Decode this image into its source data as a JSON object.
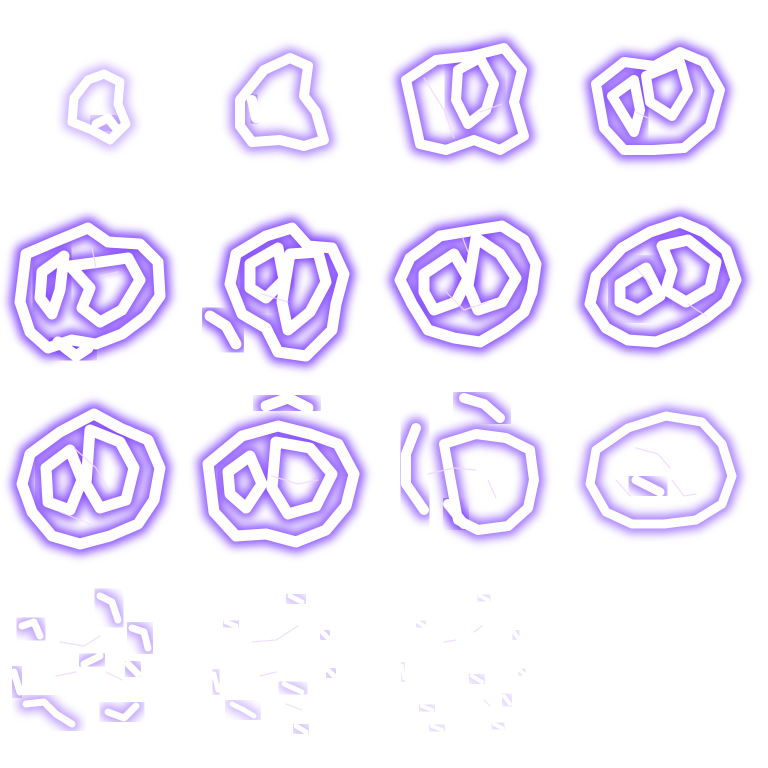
{
  "spritesheet": {
    "columns": 4,
    "rows": 4,
    "frame_count": 15,
    "effect": "electric-burst-animation",
    "colors": {
      "background": "#ffffff",
      "glow": "#7a3cff",
      "glow_soft": "#b28cff",
      "core": "#ffffff",
      "crack": "#f2d8ff"
    },
    "frames": [
      {
        "index": 1,
        "intensity": 0.35
      },
      {
        "index": 2,
        "intensity": 0.6
      },
      {
        "index": 3,
        "intensity": 0.85
      },
      {
        "index": 4,
        "intensity": 0.9
      },
      {
        "index": 5,
        "intensity": 1.0
      },
      {
        "index": 6,
        "intensity": 1.0
      },
      {
        "index": 7,
        "intensity": 1.0
      },
      {
        "index": 8,
        "intensity": 1.0
      },
      {
        "index": 9,
        "intensity": 0.95
      },
      {
        "index": 10,
        "intensity": 0.9
      },
      {
        "index": 11,
        "intensity": 0.75
      },
      {
        "index": 12,
        "intensity": 0.65
      },
      {
        "index": 13,
        "intensity": 0.45
      },
      {
        "index": 14,
        "intensity": 0.3
      },
      {
        "index": 15,
        "intensity": 0.2
      }
    ]
  }
}
